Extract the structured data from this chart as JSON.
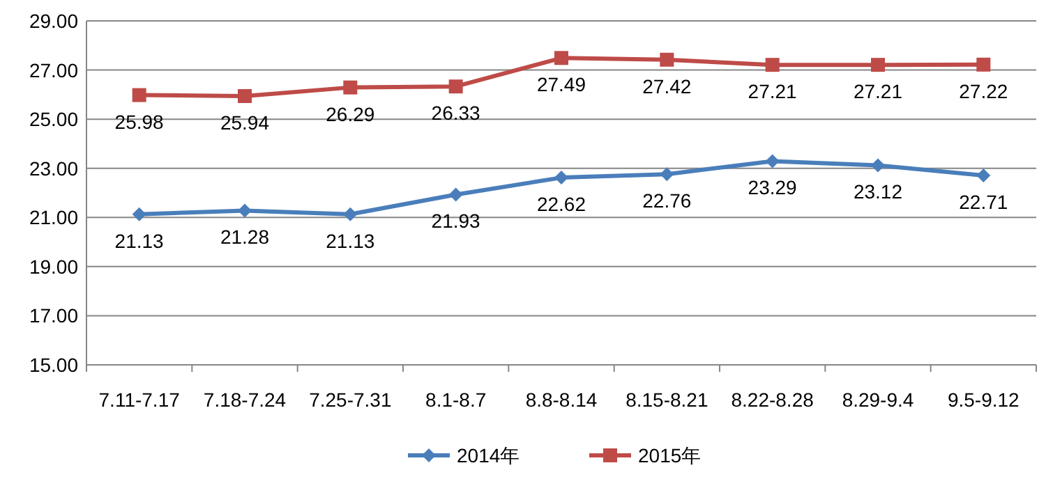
{
  "chart_data": {
    "type": "line",
    "categories": [
      "7.11-7.17",
      "7.18-7.24",
      "7.25-7.31",
      "8.1-8.7",
      "8.8-8.14",
      "8.15-8.21",
      "8.22-8.28",
      "8.29-9.4",
      "9.5-9.12"
    ],
    "series": [
      {
        "name": "2014年",
        "color": "#4a7ebb",
        "marker": "diamond",
        "values": [
          21.13,
          21.28,
          21.13,
          21.93,
          22.62,
          22.76,
          23.29,
          23.12,
          22.71
        ]
      },
      {
        "name": "2015年",
        "color": "#be4b48",
        "marker": "square",
        "values": [
          25.98,
          25.94,
          26.29,
          26.33,
          27.49,
          27.42,
          27.21,
          27.21,
          27.22
        ]
      }
    ],
    "ylim": [
      15,
      29
    ],
    "yticks": [
      {
        "value": 15,
        "label": "15.00"
      },
      {
        "value": 17,
        "label": "17.00"
      },
      {
        "value": 19,
        "label": "19.00"
      },
      {
        "value": 21,
        "label": "21.00"
      },
      {
        "value": 23,
        "label": "23.00"
      },
      {
        "value": 25,
        "label": "25.00"
      },
      {
        "value": 27,
        "label": "27.00"
      },
      {
        "value": 29,
        "label": "29.00"
      }
    ],
    "grid": "y",
    "legend": "bottom",
    "data_labels": true,
    "line_style": "solid"
  }
}
